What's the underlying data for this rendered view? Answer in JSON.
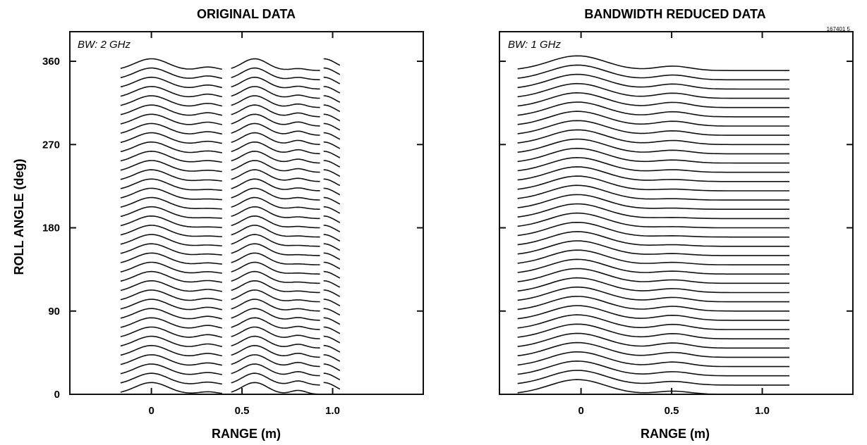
{
  "figure_code": "167401 5",
  "chart_data": [
    {
      "type": "line",
      "title": "ORIGINAL DATA",
      "annotation": "BW: 2 GHz",
      "xlabel": "RANGE (m)",
      "ylabel": "ROLL ANGLE (deg)",
      "xlim": [
        -0.45,
        1.5
      ],
      "ylim": [
        0,
        392
      ],
      "x_ticks": [
        0,
        0.5,
        1.0
      ],
      "x_tick_labels": [
        "0",
        "0.5",
        "1.0"
      ],
      "y_ticks": [
        0,
        90,
        180,
        270,
        360
      ],
      "y_tick_labels": [
        "0",
        "90",
        "180",
        "270",
        "360"
      ],
      "waterfall": {
        "roll_angle_start": 0,
        "roll_angle_end": 350,
        "roll_angle_step": 10,
        "trace_peak_height": 28,
        "segments": [
          {
            "x_start": -0.17,
            "x_end": 0.39,
            "peak_x": 0.0,
            "width": 0.13
          },
          {
            "x_start": 0.44,
            "x_end": 0.93,
            "peak_x": 0.57,
            "width": 0.1
          },
          {
            "x_start": 0.95,
            "x_end": 1.04,
            "peak_x": 0.95,
            "width": 0.1
          }
        ]
      }
    },
    {
      "type": "line",
      "title": "BANDWIDTH REDUCED DATA",
      "annotation": "BW: 1 GHz",
      "xlabel": "RANGE (m)",
      "xlim": [
        -0.45,
        1.5
      ],
      "ylim": [
        0,
        392
      ],
      "x_ticks": [
        0,
        0.5,
        1.0
      ],
      "x_tick_labels": [
        "0",
        "0.5",
        "1.0"
      ],
      "y_ticks": [
        0,
        90,
        180,
        270,
        360
      ],
      "waterfall": {
        "roll_angle_start": 0,
        "roll_angle_end": 350,
        "roll_angle_step": 10,
        "trace_peak_height": 35,
        "segments": [
          {
            "x_start": -0.35,
            "x_end": 1.15,
            "peak_x": -0.02,
            "width": 0.22
          }
        ]
      }
    }
  ]
}
